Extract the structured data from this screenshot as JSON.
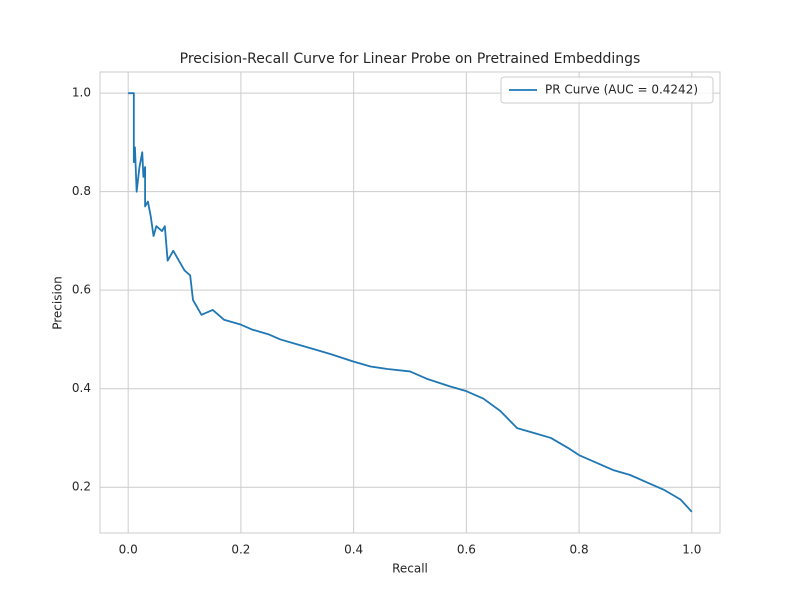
{
  "chart_data": {
    "type": "line",
    "title": "Precision-Recall Curve for Linear Probe on Pretrained Embeddings",
    "xlabel": "Recall",
    "ylabel": "Precision",
    "x": [
      0,
      0.01,
      0.01,
      0.012,
      0.015,
      0.02,
      0.025,
      0.027,
      0.03,
      0.03,
      0.035,
      0.04,
      0.045,
      0.05,
      0.06,
      0.065,
      0.07,
      0.08,
      0.09,
      0.1,
      0.11,
      0.115,
      0.12,
      0.13,
      0.15,
      0.17,
      0.2,
      0.22,
      0.25,
      0.27,
      0.3,
      0.33,
      0.36,
      0.4,
      0.43,
      0.46,
      0.5,
      0.53,
      0.57,
      0.6,
      0.63,
      0.66,
      0.69,
      0.72,
      0.75,
      0.78,
      0.8,
      0.83,
      0.86,
      0.89,
      0.92,
      0.95,
      0.98,
      1.0
    ],
    "series": [
      {
        "name": "PR Curve (AUC = 0.4242)",
        "color": "#1f77b4",
        "values": [
          1.0,
          1.0,
          0.86,
          0.89,
          0.8,
          0.85,
          0.88,
          0.83,
          0.85,
          0.77,
          0.78,
          0.75,
          0.71,
          0.73,
          0.72,
          0.73,
          0.66,
          0.68,
          0.66,
          0.64,
          0.63,
          0.58,
          0.57,
          0.55,
          0.56,
          0.54,
          0.53,
          0.52,
          0.51,
          0.5,
          0.49,
          0.48,
          0.47,
          0.455,
          0.445,
          0.44,
          0.435,
          0.42,
          0.405,
          0.395,
          0.38,
          0.355,
          0.32,
          0.31,
          0.3,
          0.28,
          0.265,
          0.25,
          0.235,
          0.225,
          0.21,
          0.195,
          0.175,
          0.15
        ]
      }
    ],
    "xlim": [
      -0.05,
      1.05
    ],
    "ylim": [
      0.107,
      1.043
    ],
    "xticks": [
      {
        "value": 0,
        "label": "0.0"
      },
      0.2,
      0.4,
      0.6,
      0.8,
      {
        "value": 1,
        "label": "1.0"
      }
    ],
    "yticks": [
      0.2,
      0.4,
      0.6,
      0.8,
      {
        "value": 1,
        "label": "1.0"
      }
    ],
    "grid": true,
    "legend": "upper right"
  }
}
